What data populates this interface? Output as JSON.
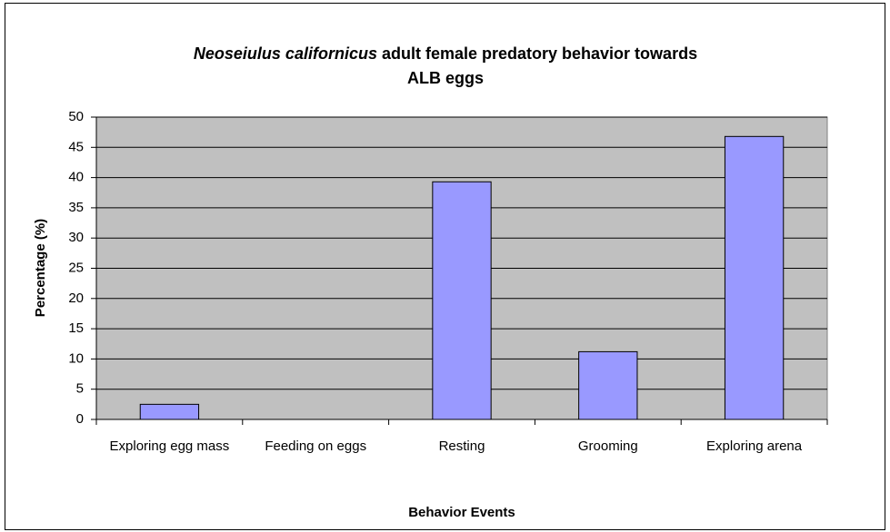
{
  "chart_data": {
    "type": "bar",
    "title": [
      {
        "text": "Neoseiulus californicus",
        "italic": true
      },
      {
        "text": "adult female predatory behavior towards"
      },
      {
        "text": "ALB eggs"
      }
    ],
    "categories": [
      "Exploring egg mass",
      "Feeding on eggs",
      "Resting",
      "Grooming",
      "Exploring arena"
    ],
    "values": [
      2.5,
      0,
      39.3,
      11.2,
      46.8
    ],
    "color": "#9999ff",
    "ylim": [
      0,
      50
    ],
    "yticks": [
      0,
      5,
      10,
      15,
      20,
      25,
      30,
      35,
      40,
      45,
      50
    ],
    "ylabel": "Percentage (%)",
    "xlabel": "Behavior Events",
    "grid": true
  }
}
